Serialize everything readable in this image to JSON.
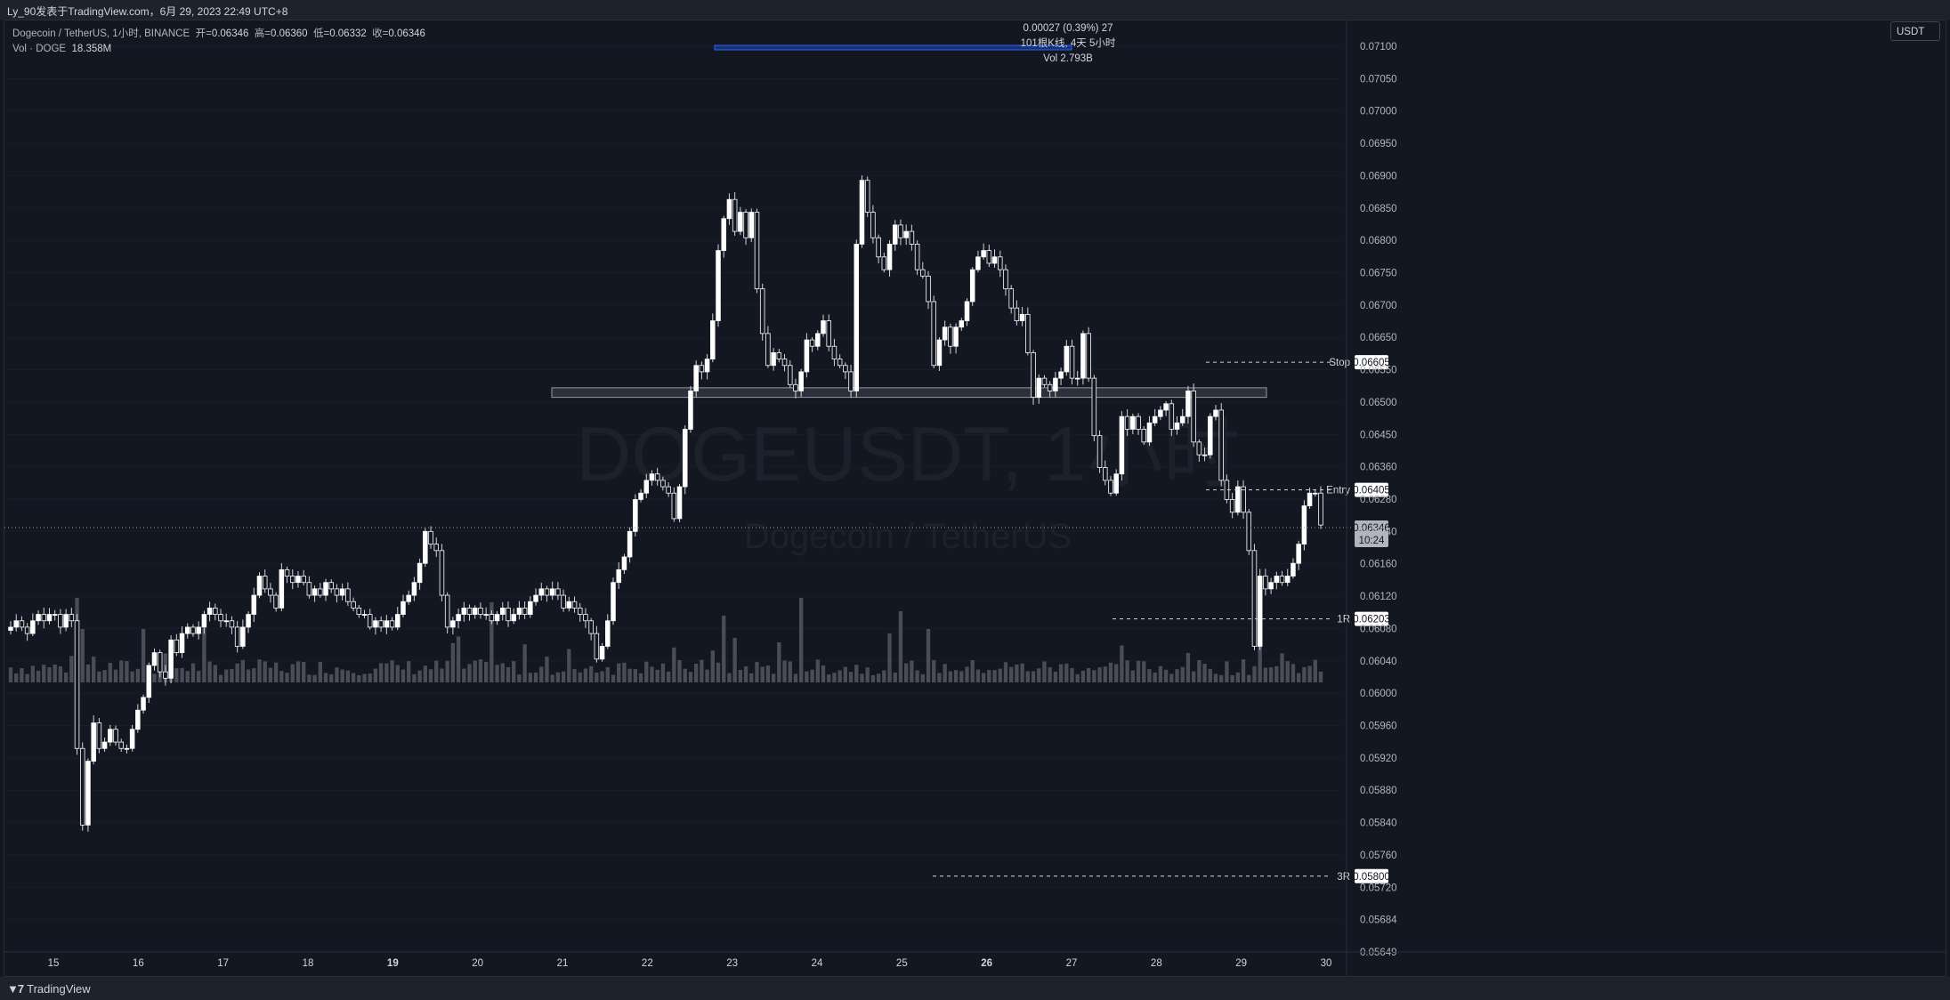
{
  "header": {
    "publisher": "Ly_90发表于TradingView.com，6月 29, 2023 22:49 UTC+8"
  },
  "legend": {
    "symbol_line": "Dogecoin / TetherUS, 1小时, BINANCE",
    "open_label": "开=",
    "open": "0.06346",
    "high_label": "高=",
    "high": "0.06360",
    "low_label": "低=",
    "low": "0.06332",
    "close_label": "收=",
    "close": "0.06346",
    "vol_label": "Vol · DOGE",
    "vol_value": "18.358M"
  },
  "measure": {
    "line1": "0.00027 (0.39%) 27",
    "line2": "101根K线, 4天 5小时",
    "line3": "Vol 2.793B"
  },
  "currency": "USDT",
  "watermark": {
    "title": "DOGEUSDT, 1小时",
    "subtitle": "Dogecoin / TetherUS"
  },
  "footer": {
    "brand": "TradingView"
  },
  "colors": {
    "background": "#131722",
    "candle": "#ffffff",
    "grid": "#1e222d",
    "volume": "#5d606b"
  },
  "chart_data": {
    "type": "candlestick",
    "interval": "1h",
    "y_axis": {
      "position": "right",
      "ticks": [
        "0.07100",
        "0.07050",
        "0.07000",
        "0.06950",
        "0.06900",
        "0.06850",
        "0.06800",
        "0.06750",
        "0.06700",
        "0.06650",
        "0.06550",
        "0.06500",
        "0.06450",
        "0.06360",
        "0.06280",
        "0.06240",
        "0.06160",
        "0.06120",
        "0.06080",
        "0.06040",
        "0.06000",
        "0.05960",
        "0.05920",
        "0.05880",
        "0.05840",
        "0.05760",
        "0.05720",
        "0.05684",
        "0.05649"
      ]
    },
    "x_axis": {
      "ticks": [
        "15",
        "16",
        "17",
        "18",
        "19",
        "20",
        "21",
        "22",
        "23",
        "24",
        "25",
        "26",
        "27",
        "28",
        "29",
        "30"
      ],
      "bold_ticks": [
        "19",
        "26"
      ]
    },
    "levels": [
      {
        "label": "Stop",
        "value": "0.06605"
      },
      {
        "label": "Entry",
        "value": "0.06405"
      },
      {
        "label": "1R",
        "value": "0.06203"
      },
      {
        "label": "3R",
        "value": "0.05800"
      }
    ],
    "current_price": {
      "value": "0.06346",
      "countdown": "10:24"
    },
    "zone": {
      "low": 0.0655,
      "high": 0.06565
    },
    "closes": [
      0.0619,
      0.062,
      0.0619,
      0.0618,
      0.062,
      0.0621,
      0.062,
      0.0621,
      0.0621,
      0.0619,
      0.0621,
      0.062,
      0.06,
      0.0588,
      0.0598,
      0.0604,
      0.06,
      0.0601,
      0.0603,
      0.0601,
      0.06,
      0.06,
      0.0603,
      0.0606,
      0.0608,
      0.0613,
      0.0615,
      0.0612,
      0.0611,
      0.0617,
      0.0615,
      0.0618,
      0.0619,
      0.0618,
      0.0619,
      0.0621,
      0.0622,
      0.0621,
      0.062,
      0.062,
      0.0619,
      0.0616,
      0.0619,
      0.0621,
      0.0624,
      0.0627,
      0.0625,
      0.0624,
      0.0622,
      0.0628,
      0.0627,
      0.0626,
      0.0627,
      0.0626,
      0.0624,
      0.0625,
      0.0624,
      0.0626,
      0.0625,
      0.0624,
      0.0625,
      0.0623,
      0.0622,
      0.0621,
      0.0621,
      0.0619,
      0.062,
      0.0619,
      0.062,
      0.0619,
      0.0621,
      0.0623,
      0.0624,
      0.0626,
      0.0629,
      0.0634,
      0.0632,
      0.0631,
      0.0624,
      0.0619,
      0.062,
      0.0621,
      0.0622,
      0.0621,
      0.0622,
      0.0621,
      0.0621,
      0.062,
      0.0621,
      0.0622,
      0.062,
      0.0621,
      0.0622,
      0.0621,
      0.0623,
      0.0624,
      0.0625,
      0.0624,
      0.0625,
      0.0624,
      0.0622,
      0.0623,
      0.0622,
      0.0621,
      0.062,
      0.0618,
      0.0614,
      0.0616,
      0.062,
      0.0626,
      0.0628,
      0.063,
      0.0634,
      0.0639,
      0.064,
      0.0642,
      0.0643,
      0.0642,
      0.0641,
      0.064,
      0.0636,
      0.0641,
      0.065,
      0.0656,
      0.066,
      0.0659,
      0.0661,
      0.0667,
      0.0678,
      0.0683,
      0.0686,
      0.0681,
      0.0684,
      0.068,
      0.0684,
      0.0672,
      0.0665,
      0.066,
      0.0662,
      0.0661,
      0.066,
      0.0657,
      0.0656,
      0.0659,
      0.0664,
      0.0663,
      0.0665,
      0.0667,
      0.0663,
      0.0661,
      0.066,
      0.0659,
      0.0656,
      0.0679,
      0.0689,
      0.0684,
      0.068,
      0.0677,
      0.0675,
      0.0679,
      0.0682,
      0.068,
      0.0681,
      0.0679,
      0.0675,
      0.0674,
      0.067,
      0.066,
      0.0664,
      0.0666,
      0.0663,
      0.0666,
      0.0667,
      0.067,
      0.0675,
      0.0677,
      0.0678,
      0.0676,
      0.0677,
      0.0675,
      0.0672,
      0.0669,
      0.0667,
      0.0668,
      0.0662,
      0.0655,
      0.0658,
      0.0657,
      0.0656,
      0.0658,
      0.0659,
      0.0663,
      0.0658,
      0.0658,
      0.0665,
      0.0658,
      0.0649,
      0.0644,
      0.0642,
      0.064,
      0.0643,
      0.0652,
      0.065,
      0.0652,
      0.065,
      0.0648,
      0.0651,
      0.0652,
      0.0653,
      0.0654,
      0.065,
      0.0651,
      0.0652,
      0.0656,
      0.0648,
      0.0646,
      0.0646,
      0.0652,
      0.0653,
      0.0642,
      0.0639,
      0.0637,
      0.0641,
      0.0637,
      0.0631,
      0.0616,
      0.0627,
      0.0625,
      0.0626,
      0.0627,
      0.0626,
      0.0627,
      0.0629,
      0.0632,
      0.0638,
      0.064,
      0.064,
      0.0635
    ]
  }
}
